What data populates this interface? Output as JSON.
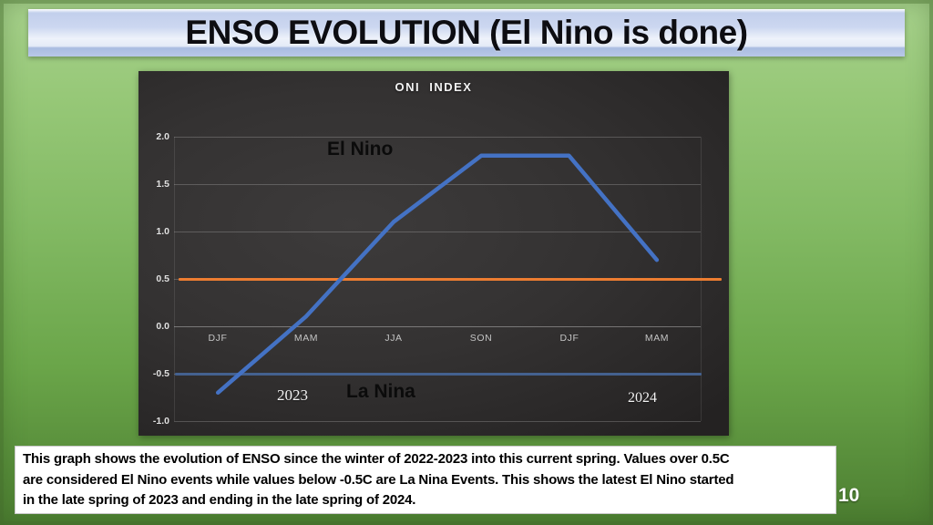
{
  "slide": {
    "title": "ENSO EVOLUTION (El Nino is done)",
    "page_number": "10",
    "caption_lines": [
      "This graph shows the evolution of ENSO since the winter of 2022-2023 into this current spring.  Values over 0.5C",
      "are considered El Nino events while values below -0.5C are La Nina Events.  This shows the latest El Nino started",
      "in the late spring of 2023 and ending in the late spring of 2024."
    ],
    "colors": {
      "slide_green_top": "#a7d18c",
      "slide_green_bottom": "#4c7e31",
      "banner_blue": "#c2cfec",
      "chart_background": "#343232"
    }
  },
  "chart_data": {
    "type": "line",
    "title": "ONI INDEX",
    "categories": [
      "DJF",
      "MAM",
      "JJA",
      "SON",
      "DJF",
      "MAM"
    ],
    "series": [
      {
        "name": "ONI",
        "color": "#4472c4",
        "values": [
          -0.7,
          0.1,
          1.1,
          1.8,
          1.8,
          0.7
        ]
      }
    ],
    "reference_lines": [
      {
        "name": "el-nino-threshold",
        "value": 0.5,
        "color": "#ed7d31"
      },
      {
        "name": "la-nina-threshold",
        "value": -0.5,
        "color": "#44618f"
      }
    ],
    "y_ticks": [
      "2.0",
      "1.5",
      "1.0",
      "0.5",
      "0.0",
      "-0.5",
      "-1.0"
    ],
    "ylim": [
      -1.0,
      2.0
    ],
    "grid": "horizontal",
    "legend": "none",
    "annotations": {
      "el_nino": "El Nino",
      "la_nina": "La Nina",
      "year_left": "2023",
      "year_right": "2024"
    }
  }
}
